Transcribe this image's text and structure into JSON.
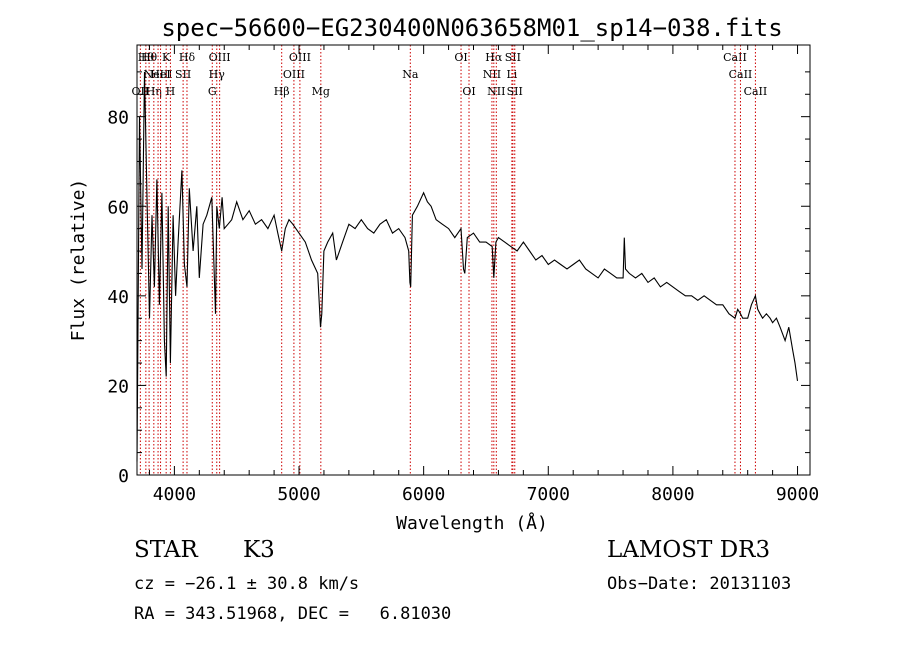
{
  "chart_data": {
    "type": "line",
    "title": "spec−56600−EG230400N063658M01_sp14−038.fits",
    "xlabel": "Wavelength (Å)",
    "ylabel": "Flux (relative)",
    "xlim": [
      3700,
      9100
    ],
    "ylim": [
      0,
      96
    ],
    "xticks": [
      4000,
      5000,
      6000,
      7000,
      8000,
      9000
    ],
    "yticks": [
      0,
      20,
      40,
      60,
      80
    ],
    "series": [
      {
        "name": "spectrum",
        "x": [
          3700,
          3720,
          3740,
          3760,
          3780,
          3800,
          3820,
          3840,
          3860,
          3880,
          3900,
          3920,
          3934,
          3950,
          3968,
          3990,
          4010,
          4030,
          4060,
          4080,
          4101,
          4120,
          4150,
          4180,
          4200,
          4230,
          4260,
          4300,
          4330,
          4340,
          4360,
          4383,
          4400,
          4430,
          4460,
          4500,
          4550,
          4600,
          4650,
          4700,
          4750,
          4800,
          4830,
          4861,
          4890,
          4920,
          4950,
          5000,
          5050,
          5100,
          5150,
          5172,
          5183,
          5200,
          5230,
          5270,
          5300,
          5350,
          5400,
          5450,
          5500,
          5550,
          5600,
          5650,
          5700,
          5750,
          5800,
          5850,
          5880,
          5890,
          5896,
          5910,
          5950,
          6000,
          6030,
          6060,
          6100,
          6150,
          6200,
          6250,
          6300,
          6320,
          6330,
          6350,
          6400,
          6450,
          6500,
          6550,
          6563,
          6580,
          6600,
          6650,
          6700,
          6750,
          6800,
          6850,
          6900,
          6950,
          7000,
          7050,
          7100,
          7150,
          7200,
          7250,
          7300,
          7350,
          7400,
          7450,
          7500,
          7550,
          7600,
          7610,
          7620,
          7650,
          7700,
          7750,
          7800,
          7850,
          7900,
          7950,
          8000,
          8050,
          8100,
          8150,
          8200,
          8250,
          8300,
          8350,
          8400,
          8450,
          8498,
          8520,
          8542,
          8560,
          8600,
          8630,
          8662,
          8680,
          8700,
          8720,
          8750,
          8780,
          8800,
          8830,
          8860,
          8900,
          8930,
          8960,
          8980,
          9000
        ],
        "y": [
          3,
          80,
          46,
          90,
          62,
          35,
          58,
          42,
          66,
          38,
          63,
          30,
          22,
          60,
          25,
          58,
          40,
          52,
          68,
          47,
          42,
          64,
          50,
          60,
          44,
          56,
          58,
          62,
          36,
          60,
          55,
          62,
          55,
          56,
          57,
          61,
          57,
          59,
          56,
          57,
          55,
          58,
          54,
          50,
          55,
          57,
          56,
          54,
          52,
          48,
          45,
          33,
          36,
          50,
          52,
          54,
          48,
          52,
          56,
          55,
          57,
          55,
          54,
          56,
          57,
          54,
          55,
          53,
          50,
          43,
          42,
          58,
          60,
          63,
          61,
          60,
          57,
          56,
          55,
          53,
          55,
          46,
          45,
          53,
          54,
          52,
          52,
          51,
          44,
          52,
          53,
          52,
          51,
          50,
          52,
          50,
          48,
          49,
          47,
          48,
          47,
          46,
          47,
          48,
          46,
          45,
          44,
          46,
          45,
          44,
          44,
          53,
          46,
          45,
          44,
          45,
          43,
          44,
          42,
          43,
          42,
          41,
          40,
          40,
          39,
          40,
          39,
          38,
          38,
          36,
          35,
          37,
          36,
          35,
          35,
          38,
          40,
          37,
          36,
          35,
          36,
          35,
          34,
          35,
          33,
          30,
          33,
          28,
          25,
          21
        ]
      }
    ],
    "lines": [
      {
        "wl": 3727,
        "label": "OII",
        "row": 2
      },
      {
        "wl": 3771,
        "label": "Hθ",
        "row": 0
      },
      {
        "wl": 3797,
        "label": "Hθ",
        "row": 0
      },
      {
        "wl": 3835,
        "label": "Hη",
        "row": 2
      },
      {
        "wl": 3869,
        "label": "NeIII",
        "row": 1
      },
      {
        "wl": 3889,
        "label": "HeI",
        "row": 1
      },
      {
        "wl": 3934,
        "label": "K",
        "row": 0
      },
      {
        "wl": 3968,
        "label": "H",
        "row": 2
      },
      {
        "wl": 4070,
        "label": "SII",
        "row": 1
      },
      {
        "wl": 4101,
        "label": "Hδ",
        "row": 0
      },
      {
        "wl": 4304,
        "label": "G",
        "row": 2
      },
      {
        "wl": 4340,
        "label": "Hγ",
        "row": 1
      },
      {
        "wl": 4363,
        "label": "OIII",
        "row": 0
      },
      {
        "wl": 4861,
        "label": "Hβ",
        "row": 2
      },
      {
        "wl": 4959,
        "label": "OIII",
        "row": 1
      },
      {
        "wl": 5007,
        "label": "OIII",
        "row": 0
      },
      {
        "wl": 5175,
        "label": "Mg",
        "row": 2
      },
      {
        "wl": 5893,
        "label": "Na",
        "row": 1
      },
      {
        "wl": 6300,
        "label": "OI",
        "row": 0
      },
      {
        "wl": 6364,
        "label": "OI",
        "row": 2
      },
      {
        "wl": 6548,
        "label": "NII",
        "row": 1
      },
      {
        "wl": 6563,
        "label": "Hα",
        "row": 0
      },
      {
        "wl": 6583,
        "label": "NII",
        "row": 2
      },
      {
        "wl": 6708,
        "label": "Li",
        "row": 1
      },
      {
        "wl": 6716,
        "label": "SII",
        "row": 0
      },
      {
        "wl": 6731,
        "label": "SII",
        "row": 2
      },
      {
        "wl": 8498,
        "label": "CaII",
        "row": 0
      },
      {
        "wl": 8542,
        "label": "CaII",
        "row": 1
      },
      {
        "wl": 8662,
        "label": "CaII",
        "row": 2
      }
    ]
  },
  "info": {
    "object_class": "STAR",
    "subclass": "K3",
    "survey": "LAMOST DR3",
    "cz": "cz = −26.1 ± 30.8 km/s",
    "obs_date": "Obs−Date: 20131103",
    "coords": "RA = 343.51968, DEC =   6.81030"
  },
  "colors": {
    "spectrum": "#000000",
    "line_markers": "#cc0000",
    "axes": "#000000"
  }
}
